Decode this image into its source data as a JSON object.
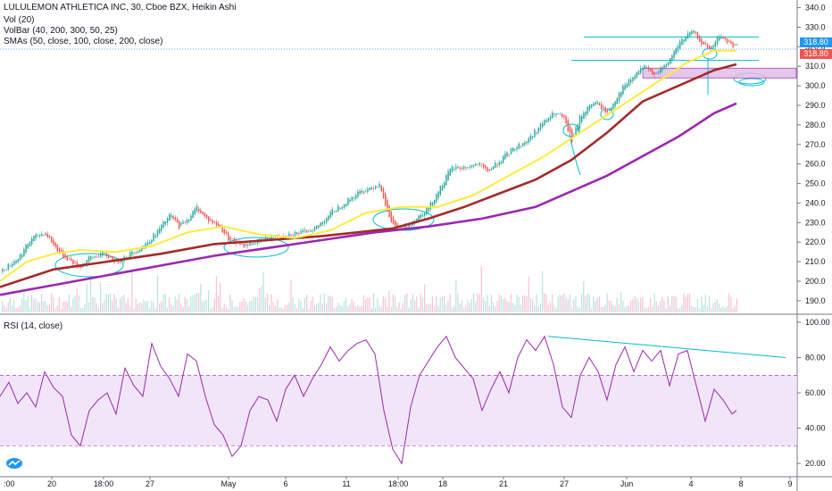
{
  "legend": {
    "title": "LULULEMON ATHLETICA INC, 30, Cboe BZX, Heikin Ashi",
    "vol": "Vol (20)",
    "volbar": "VolBar (40, 200, 300, 50, 25)",
    "smas": "SMAs (50, close, 100, close, 200, close)",
    "rsi": "RSI (14, close)"
  },
  "price_labels": {
    "last": "318.80",
    "sma": "318.80"
  },
  "colors": {
    "up": "#26a69a",
    "down": "#ef5350",
    "sma50": "#ffeb3b",
    "sma100": "#a52a2a",
    "sma200": "#9c27b0",
    "rsi": "#9c27b0",
    "rsi_band": "#e8d5f5",
    "annotation": "#00bcd4",
    "last_price": "#2196f3",
    "sma_label": "#ef5350"
  },
  "chart_data": [
    {
      "type": "candlestick",
      "title": "LULULEMON ATHLETICA INC, 30, Cboe BZX, Heikin Ashi",
      "x_tick_labels": [
        "20",
        "18:00",
        "27",
        "May",
        "6",
        "11",
        "18:00",
        "18",
        "21",
        "27",
        "Jun",
        "4",
        "8",
        "9"
      ],
      "y_ticks": [
        190,
        200,
        210,
        220,
        230,
        240,
        250,
        260,
        270,
        280,
        290,
        300,
        310,
        320,
        330,
        340
      ],
      "ylim": [
        184,
        343
      ],
      "price_path": [
        [
          0,
          205
        ],
        [
          20,
          212
        ],
        [
          35,
          222
        ],
        [
          50,
          225
        ],
        [
          60,
          218
        ],
        [
          70,
          213
        ],
        [
          80,
          210
        ],
        [
          88,
          207
        ],
        [
          100,
          212
        ],
        [
          115,
          214
        ],
        [
          130,
          210
        ],
        [
          145,
          214
        ],
        [
          160,
          218
        ],
        [
          175,
          225
        ],
        [
          190,
          234
        ],
        [
          200,
          228
        ],
        [
          210,
          232
        ],
        [
          220,
          238
        ],
        [
          230,
          232
        ],
        [
          245,
          228
        ],
        [
          255,
          222
        ],
        [
          270,
          218
        ],
        [
          285,
          220
        ],
        [
          300,
          222
        ],
        [
          320,
          224
        ],
        [
          340,
          225
        ],
        [
          355,
          228
        ],
        [
          370,
          235
        ],
        [
          385,
          240
        ],
        [
          400,
          245
        ],
        [
          415,
          248
        ],
        [
          425,
          250
        ],
        [
          435,
          232
        ],
        [
          445,
          226
        ],
        [
          455,
          228
        ],
        [
          465,
          232
        ],
        [
          480,
          238
        ],
        [
          495,
          250
        ],
        [
          505,
          258
        ],
        [
          520,
          258
        ],
        [
          535,
          260
        ],
        [
          545,
          256
        ],
        [
          560,
          262
        ],
        [
          575,
          268
        ],
        [
          590,
          272
        ],
        [
          605,
          280
        ],
        [
          620,
          286
        ],
        [
          630,
          284
        ],
        [
          640,
          272
        ],
        [
          650,
          285
        ],
        [
          665,
          292
        ],
        [
          680,
          286
        ],
        [
          695,
          298
        ],
        [
          710,
          305
        ],
        [
          720,
          310
        ],
        [
          730,
          306
        ],
        [
          745,
          310
        ],
        [
          760,
          322
        ],
        [
          775,
          328
        ],
        [
          785,
          322
        ],
        [
          795,
          318
        ],
        [
          805,
          326
        ],
        [
          815,
          322
        ],
        [
          825,
          320
        ]
      ],
      "sma_50": [
        [
          0,
          200
        ],
        [
          30,
          210
        ],
        [
          60,
          214
        ],
        [
          90,
          216
        ],
        [
          130,
          215
        ],
        [
          170,
          218
        ],
        [
          210,
          225
        ],
        [
          250,
          228
        ],
        [
          290,
          224
        ],
        [
          330,
          222
        ],
        [
          370,
          226
        ],
        [
          410,
          235
        ],
        [
          450,
          238
        ],
        [
          490,
          238
        ],
        [
          530,
          244
        ],
        [
          570,
          254
        ],
        [
          610,
          264
        ],
        [
          650,
          276
        ],
        [
          690,
          288
        ],
        [
          730,
          300
        ],
        [
          770,
          312
        ],
        [
          800,
          318
        ],
        [
          825,
          318
        ]
      ],
      "sma_100": [
        [
          0,
          197
        ],
        [
          60,
          206
        ],
        [
          120,
          210
        ],
        [
          180,
          214
        ],
        [
          240,
          219
        ],
        [
          300,
          221
        ],
        [
          360,
          223
        ],
        [
          400,
          225
        ],
        [
          440,
          227
        ],
        [
          480,
          232
        ],
        [
          520,
          238
        ],
        [
          560,
          245
        ],
        [
          600,
          252
        ],
        [
          640,
          262
        ],
        [
          680,
          276
        ],
        [
          720,
          292
        ],
        [
          760,
          300
        ],
        [
          800,
          308
        ],
        [
          825,
          311
        ]
      ],
      "sma_200": [
        [
          0,
          193
        ],
        [
          60,
          198
        ],
        [
          120,
          203
        ],
        [
          180,
          208
        ],
        [
          240,
          213
        ],
        [
          300,
          217
        ],
        [
          360,
          221
        ],
        [
          420,
          225
        ],
        [
          480,
          228
        ],
        [
          540,
          232
        ],
        [
          600,
          238
        ],
        [
          640,
          246
        ],
        [
          680,
          254
        ],
        [
          720,
          264
        ],
        [
          760,
          274
        ],
        [
          800,
          286
        ],
        [
          825,
          291
        ]
      ],
      "last_price": 318.8
    },
    {
      "type": "line",
      "title": "RSI (14, close)",
      "y_ticks": [
        20,
        40,
        60,
        80,
        100
      ],
      "ylim": [
        13,
        103
      ],
      "band": [
        30,
        70
      ],
      "values": [
        [
          0,
          58
        ],
        [
          10,
          66
        ],
        [
          20,
          54
        ],
        [
          30,
          60
        ],
        [
          40,
          52
        ],
        [
          50,
          72
        ],
        [
          60,
          63
        ],
        [
          70,
          58
        ],
        [
          80,
          36
        ],
        [
          90,
          30
        ],
        [
          100,
          50
        ],
        [
          110,
          56
        ],
        [
          120,
          60
        ],
        [
          130,
          48
        ],
        [
          140,
          74
        ],
        [
          150,
          64
        ],
        [
          160,
          58
        ],
        [
          170,
          88
        ],
        [
          180,
          75
        ],
        [
          190,
          68
        ],
        [
          200,
          58
        ],
        [
          210,
          82
        ],
        [
          220,
          78
        ],
        [
          230,
          58
        ],
        [
          240,
          42
        ],
        [
          250,
          36
        ],
        [
          260,
          24
        ],
        [
          270,
          30
        ],
        [
          280,
          50
        ],
        [
          290,
          58
        ],
        [
          300,
          56
        ],
        [
          310,
          44
        ],
        [
          320,
          62
        ],
        [
          330,
          70
        ],
        [
          340,
          58
        ],
        [
          350,
          68
        ],
        [
          360,
          76
        ],
        [
          370,
          86
        ],
        [
          380,
          78
        ],
        [
          390,
          84
        ],
        [
          400,
          88
        ],
        [
          410,
          90
        ],
        [
          420,
          82
        ],
        [
          430,
          50
        ],
        [
          440,
          28
        ],
        [
          450,
          20
        ],
        [
          460,
          52
        ],
        [
          470,
          70
        ],
        [
          480,
          78
        ],
        [
          490,
          86
        ],
        [
          500,
          92
        ],
        [
          510,
          80
        ],
        [
          520,
          74
        ],
        [
          530,
          68
        ],
        [
          540,
          50
        ],
        [
          550,
          62
        ],
        [
          560,
          72
        ],
        [
          570,
          60
        ],
        [
          580,
          80
        ],
        [
          590,
          90
        ],
        [
          600,
          84
        ],
        [
          610,
          92
        ],
        [
          620,
          76
        ],
        [
          630,
          52
        ],
        [
          640,
          46
        ],
        [
          650,
          70
        ],
        [
          660,
          80
        ],
        [
          670,
          72
        ],
        [
          680,
          56
        ],
        [
          690,
          76
        ],
        [
          700,
          86
        ],
        [
          710,
          72
        ],
        [
          720,
          84
        ],
        [
          730,
          78
        ],
        [
          740,
          84
        ],
        [
          750,
          64
        ],
        [
          760,
          82
        ],
        [
          770,
          84
        ],
        [
          780,
          64
        ],
        [
          790,
          44
        ],
        [
          800,
          62
        ],
        [
          810,
          56
        ],
        [
          820,
          48
        ],
        [
          825,
          50
        ]
      ],
      "trendline": [
        [
          614,
          92
        ],
        [
          880,
          80
        ]
      ]
    }
  ]
}
